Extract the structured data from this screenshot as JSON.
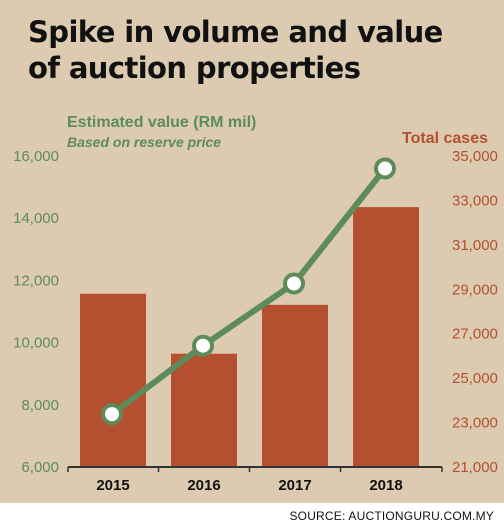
{
  "header": {
    "title_line1": "Spike in volume and value",
    "title_line2": "of auction properties"
  },
  "source": "SOURCE: AUCTIONGURU.COM.MY",
  "colors": {
    "background": "#dccbb1",
    "bar": "#b4502f",
    "line": "#5e8b5a",
    "marker_fill": "#ffffff",
    "axis": "#333333",
    "title": "#111111"
  },
  "chart_data": {
    "type": "bar",
    "title": "Spike in volume and value of auction properties",
    "categories": [
      "2015",
      "2016",
      "2017",
      "2018"
    ],
    "left_axis": {
      "label": "Estimated value (RM mil)",
      "sublabel": "Based on reserve price",
      "ticks": [
        "6,000",
        "8,000",
        "10,000",
        "12,000",
        "14,000",
        "16,000"
      ],
      "ylim": [
        6000,
        16000
      ]
    },
    "right_axis": {
      "label": "Total cases",
      "ticks": [
        "21,000",
        "23,000",
        "25,000",
        "27,000",
        "29,000",
        "31,000",
        "33,000",
        "35,000"
      ],
      "ylim": [
        21000,
        35000
      ]
    },
    "series": [
      {
        "name": "Total cases",
        "type": "bar",
        "axis": "right",
        "values": [
          28800,
          26100,
          28300,
          32700
        ]
      },
      {
        "name": "Estimated value (RM mil)",
        "type": "line",
        "axis": "left",
        "marker": "circle",
        "values": [
          7700,
          9900,
          11900,
          15600
        ]
      }
    ],
    "grid": false,
    "legend": "none"
  }
}
